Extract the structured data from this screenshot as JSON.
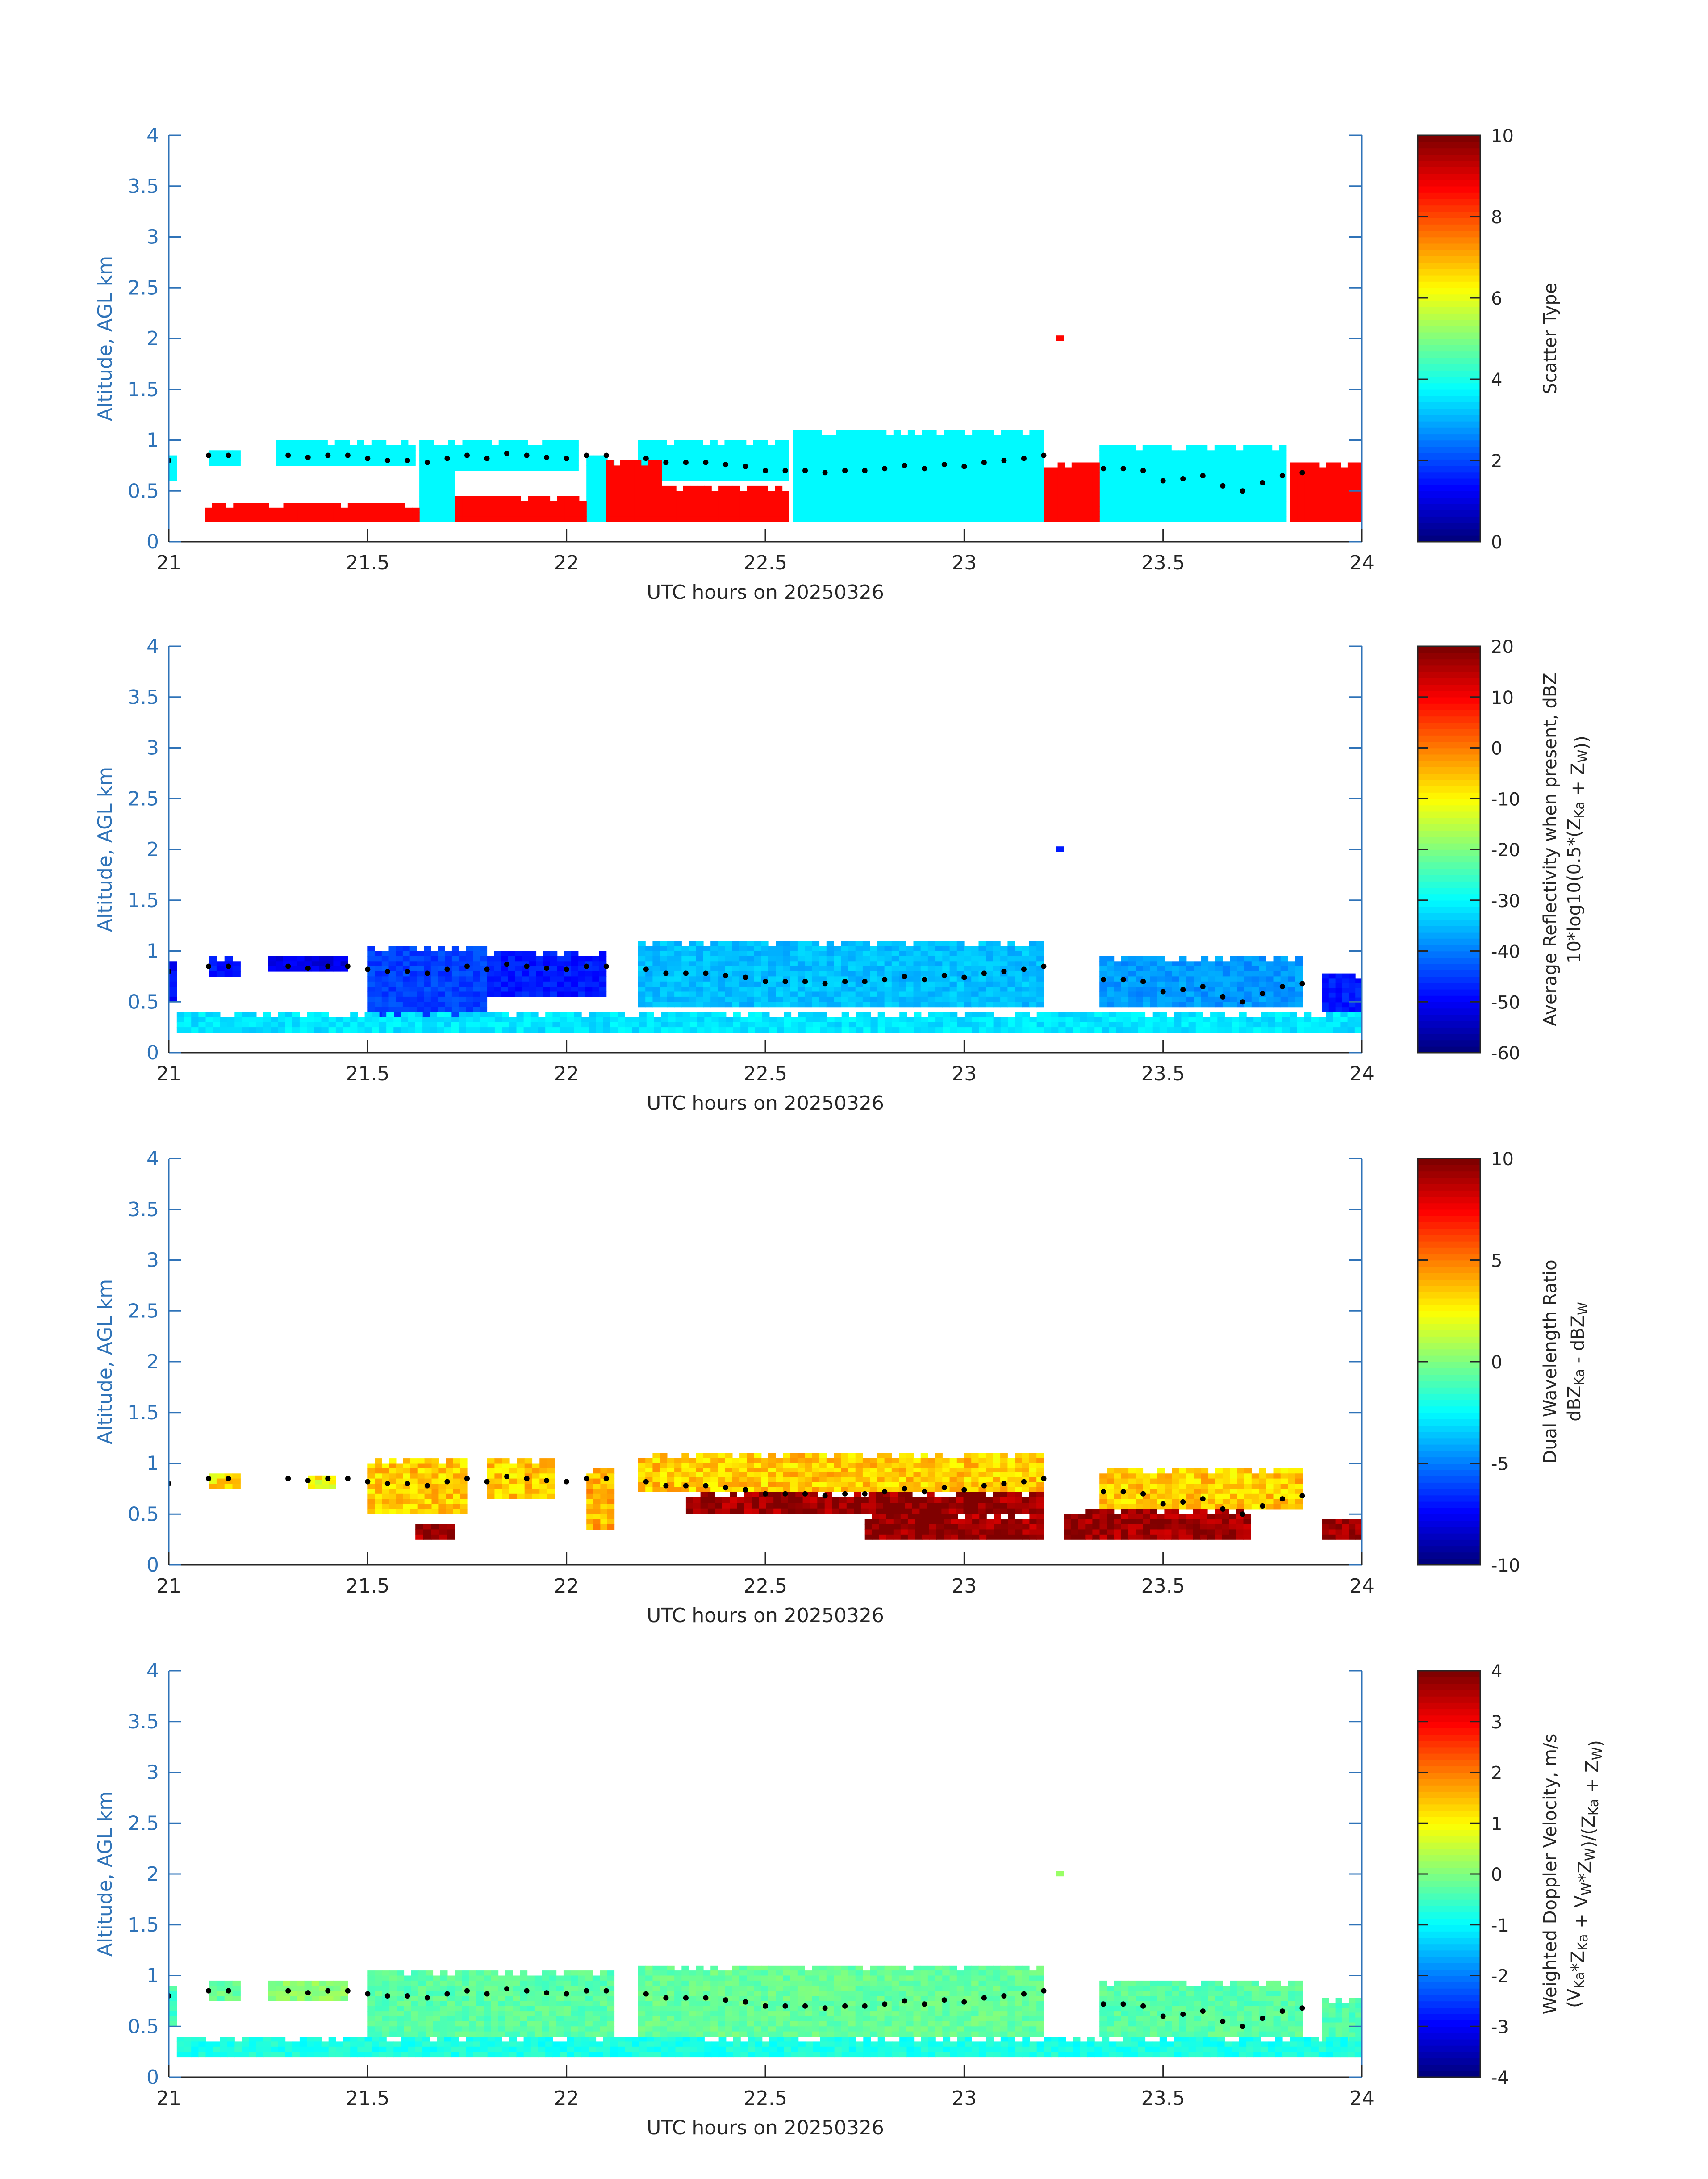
{
  "figure": {
    "panel_count": 4
  },
  "colormap": "jet",
  "chart_data": [
    {
      "type": "heatmap",
      "title": "",
      "xlabel": "UTC hours on 20250326",
      "ylabel": "Altitude, AGL km",
      "xlim": [
        21,
        24
      ],
      "ylim": [
        0,
        4
      ],
      "xticks": [
        "21",
        "21.5",
        "22",
        "22.5",
        "23",
        "23.5",
        "24"
      ],
      "yticks": [
        "0",
        "0.5",
        "1",
        "1.5",
        "2",
        "2.5",
        "3",
        "3.5",
        "4"
      ],
      "colorbar": {
        "label_lines": [
          "Scatter Type"
        ],
        "range": [
          0,
          10
        ],
        "ticks": [
          "0",
          "2",
          "4",
          "6",
          "8",
          "10"
        ]
      },
      "dominant_values": {
        "upper_layer": 3.7,
        "lower_layer": 8.7
      },
      "echo_regions": [
        {
          "x0": 21.0,
          "x1": 21.02,
          "y0": 0.6,
          "y1": 0.85,
          "value": 3.7
        },
        {
          "x0": 21.1,
          "x1": 21.18,
          "y0": 0.75,
          "y1": 0.9,
          "value": 3.7
        },
        {
          "x0": 21.27,
          "x1": 21.62,
          "y0": 0.75,
          "y1": 1.0,
          "value": 3.7
        },
        {
          "x0": 21.63,
          "x1": 21.72,
          "y0": 0.2,
          "y1": 1.0,
          "value": 3.7
        },
        {
          "x0": 21.72,
          "x1": 22.03,
          "y0": 0.7,
          "y1": 1.0,
          "value": 3.7
        },
        {
          "x0": 22.05,
          "x1": 22.12,
          "y0": 0.2,
          "y1": 0.85,
          "value": 3.7
        },
        {
          "x0": 22.18,
          "x1": 22.56,
          "y0": 0.6,
          "y1": 1.0,
          "value": 3.7
        },
        {
          "x0": 22.57,
          "x1": 23.2,
          "y0": 0.2,
          "y1": 1.1,
          "value": 3.7
        },
        {
          "x0": 23.34,
          "x1": 23.81,
          "y0": 0.2,
          "y1": 0.95,
          "value": 3.7
        },
        {
          "x0": 21.09,
          "x1": 21.63,
          "y0": 0.2,
          "y1": 0.38,
          "value": 8.7
        },
        {
          "x0": 21.72,
          "x1": 22.05,
          "y0": 0.2,
          "y1": 0.45,
          "value": 8.7
        },
        {
          "x0": 22.1,
          "x1": 22.24,
          "y0": 0.2,
          "y1": 0.8,
          "value": 8.7
        },
        {
          "x0": 22.24,
          "x1": 22.56,
          "y0": 0.2,
          "y1": 0.55,
          "value": 8.7
        },
        {
          "x0": 23.2,
          "x1": 23.34,
          "y0": 0.2,
          "y1": 0.78,
          "value": 8.7
        },
        {
          "x0": 23.82,
          "x1": 24.0,
          "y0": 0.2,
          "y1": 0.78,
          "value": 8.7
        },
        {
          "x0": 23.23,
          "x1": 23.25,
          "y0": 1.98,
          "y1": 2.03,
          "value": 8.7
        }
      ]
    },
    {
      "type": "heatmap",
      "title": "",
      "xlabel": "UTC hours on 20250326",
      "ylabel": "Altitude, AGL km",
      "xlim": [
        21,
        24
      ],
      "ylim": [
        0,
        4
      ],
      "xticks": [
        "21",
        "21.5",
        "22",
        "22.5",
        "23",
        "23.5",
        "24"
      ],
      "yticks": [
        "0",
        "0.5",
        "1",
        "1.5",
        "2",
        "2.5",
        "3",
        "3.5",
        "4"
      ],
      "colorbar": {
        "label_lines": [
          "Average Reflectivity when present, dBZ",
          "10*log10(0.5*(Z_Ka + Z_W))"
        ],
        "range": [
          -60,
          20
        ],
        "ticks": [
          "-60",
          "-50",
          "-40",
          "-30",
          "-20",
          "-10",
          "0",
          "10",
          "20"
        ]
      },
      "dominant_values": {
        "cloud_top": -45,
        "cloud_core": -30,
        "surface_layer": -32
      },
      "echo_regions": [
        {
          "x0": 21.0,
          "x1": 21.02,
          "y0": 0.5,
          "y1": 0.9,
          "value": -50
        },
        {
          "x0": 21.1,
          "x1": 21.18,
          "y0": 0.75,
          "y1": 0.95,
          "value": -48
        },
        {
          "x0": 21.25,
          "x1": 21.45,
          "y0": 0.8,
          "y1": 0.95,
          "value": -52
        },
        {
          "x0": 21.5,
          "x1": 21.8,
          "y0": 0.35,
          "y1": 1.05,
          "value": -45
        },
        {
          "x0": 21.8,
          "x1": 22.1,
          "y0": 0.55,
          "y1": 1.0,
          "value": -48
        },
        {
          "x0": 22.18,
          "x1": 23.2,
          "y0": 0.45,
          "y1": 1.1,
          "value": -35
        },
        {
          "x0": 23.34,
          "x1": 23.85,
          "y0": 0.45,
          "y1": 0.95,
          "value": -38
        },
        {
          "x0": 23.9,
          "x1": 24.0,
          "y0": 0.4,
          "y1": 0.78,
          "value": -48
        },
        {
          "x0": 21.02,
          "x1": 24.0,
          "y0": 0.2,
          "y1": 0.4,
          "value": -32
        },
        {
          "x0": 23.23,
          "x1": 23.25,
          "y0": 1.98,
          "y1": 2.03,
          "value": -48
        }
      ]
    },
    {
      "type": "heatmap",
      "title": "",
      "xlabel": "UTC hours on 20250326",
      "ylabel": "Altitude, AGL km",
      "xlim": [
        21,
        24
      ],
      "ylim": [
        0,
        4
      ],
      "xticks": [
        "21",
        "21.5",
        "22",
        "22.5",
        "23",
        "23.5",
        "24"
      ],
      "yticks": [
        "0",
        "0.5",
        "1",
        "1.5",
        "2",
        "2.5",
        "3",
        "3.5",
        "4"
      ],
      "colorbar": {
        "label_lines": [
          "Dual Wavelength Ratio",
          "dBZ_Ka - dBZ_W"
        ],
        "range": [
          -10,
          10
        ],
        "ticks": [
          "-10",
          "-5",
          "0",
          "5",
          "10"
        ]
      },
      "dominant_values": {
        "cloud": 3.5,
        "lower_edge": 9.5
      },
      "echo_regions": [
        {
          "x0": 21.1,
          "x1": 21.18,
          "y0": 0.75,
          "y1": 0.9,
          "value": 3.0
        },
        {
          "x0": 21.35,
          "x1": 21.42,
          "y0": 0.75,
          "y1": 0.88,
          "value": 2.5
        },
        {
          "x0": 21.5,
          "x1": 21.75,
          "y0": 0.5,
          "y1": 1.05,
          "value": 3.5
        },
        {
          "x0": 21.8,
          "x1": 21.97,
          "y0": 0.65,
          "y1": 1.05,
          "value": 3.5
        },
        {
          "x0": 22.05,
          "x1": 22.12,
          "y0": 0.35,
          "y1": 0.95,
          "value": 4.0
        },
        {
          "x0": 22.18,
          "x1": 23.2,
          "y0": 0.72,
          "y1": 1.1,
          "value": 3.5
        },
        {
          "x0": 23.34,
          "x1": 23.85,
          "y0": 0.55,
          "y1": 0.95,
          "value": 3.5
        },
        {
          "x0": 21.62,
          "x1": 21.72,
          "y0": 0.25,
          "y1": 0.4,
          "value": 9.5
        },
        {
          "x0": 22.3,
          "x1": 23.2,
          "y0": 0.5,
          "y1": 0.72,
          "value": 9.5
        },
        {
          "x0": 22.75,
          "x1": 23.2,
          "y0": 0.25,
          "y1": 0.5,
          "value": 9.5
        },
        {
          "x0": 23.25,
          "x1": 23.72,
          "y0": 0.25,
          "y1": 0.55,
          "value": 9.5
        },
        {
          "x0": 23.9,
          "x1": 24.0,
          "y0": 0.25,
          "y1": 0.45,
          "value": 9.5
        }
      ]
    },
    {
      "type": "heatmap",
      "title": "",
      "xlabel": "UTC hours on 20250326",
      "ylabel": "Altitude, AGL km",
      "xlim": [
        21,
        24
      ],
      "ylim": [
        0,
        4
      ],
      "xticks": [
        "21",
        "21.5",
        "22",
        "22.5",
        "23",
        "23.5",
        "24"
      ],
      "yticks": [
        "0",
        "0.5",
        "1",
        "1.5",
        "2",
        "2.5",
        "3",
        "3.5",
        "4"
      ],
      "colorbar": {
        "label_lines": [
          "Weighted Doppler Velocity, m/s",
          "(V_Ka*Z_Ka + V_W*Z_W)/(Z_Ka + Z_W)"
        ],
        "range": [
          -4,
          4
        ],
        "ticks": [
          "-4",
          "-3",
          "-2",
          "-1",
          "0",
          "1",
          "2",
          "3",
          "4"
        ]
      },
      "dominant_values": {
        "cloud": -0.3,
        "surface_layer": -0.8
      },
      "echo_regions": [
        {
          "x0": 21.0,
          "x1": 21.02,
          "y0": 0.5,
          "y1": 0.9,
          "value": -0.5
        },
        {
          "x0": 21.1,
          "x1": 21.18,
          "y0": 0.75,
          "y1": 0.95,
          "value": -0.2
        },
        {
          "x0": 21.25,
          "x1": 21.45,
          "y0": 0.75,
          "y1": 0.95,
          "value": 0.1
        },
        {
          "x0": 21.5,
          "x1": 22.12,
          "y0": 0.4,
          "y1": 1.05,
          "value": -0.3
        },
        {
          "x0": 22.18,
          "x1": 23.2,
          "y0": 0.4,
          "y1": 1.1,
          "value": -0.2
        },
        {
          "x0": 23.34,
          "x1": 23.85,
          "y0": 0.4,
          "y1": 0.95,
          "value": -0.3
        },
        {
          "x0": 23.9,
          "x1": 24.0,
          "y0": 0.2,
          "y1": 0.78,
          "value": -0.4
        },
        {
          "x0": 21.02,
          "x1": 24.0,
          "y0": 0.2,
          "y1": 0.4,
          "value": -0.8
        },
        {
          "x0": 23.23,
          "x1": 23.25,
          "y0": 1.98,
          "y1": 2.03,
          "value": 0.3
        }
      ]
    }
  ],
  "marker_series": {
    "marker": "black dots",
    "x": [
      21.0,
      21.1,
      21.15,
      21.3,
      21.35,
      21.4,
      21.45,
      21.5,
      21.55,
      21.6,
      21.65,
      21.7,
      21.75,
      21.8,
      21.85,
      21.9,
      21.95,
      22.0,
      22.05,
      22.1,
      22.2,
      22.25,
      22.3,
      22.35,
      22.4,
      22.45,
      22.5,
      22.55,
      22.6,
      22.65,
      22.7,
      22.75,
      22.8,
      22.85,
      22.9,
      22.95,
      23.0,
      23.05,
      23.1,
      23.15,
      23.2,
      23.35,
      23.4,
      23.45,
      23.5,
      23.55,
      23.6,
      23.65,
      23.7,
      23.75,
      23.8,
      23.85
    ],
    "y": [
      0.8,
      0.85,
      0.85,
      0.85,
      0.83,
      0.85,
      0.85,
      0.82,
      0.8,
      0.8,
      0.78,
      0.82,
      0.85,
      0.82,
      0.87,
      0.85,
      0.83,
      0.82,
      0.85,
      0.85,
      0.82,
      0.78,
      0.78,
      0.78,
      0.76,
      0.74,
      0.7,
      0.7,
      0.7,
      0.68,
      0.7,
      0.7,
      0.72,
      0.75,
      0.72,
      0.76,
      0.74,
      0.78,
      0.8,
      0.82,
      0.85,
      0.72,
      0.72,
      0.7,
      0.6,
      0.62,
      0.65,
      0.55,
      0.5,
      0.58,
      0.65,
      0.68
    ]
  }
}
